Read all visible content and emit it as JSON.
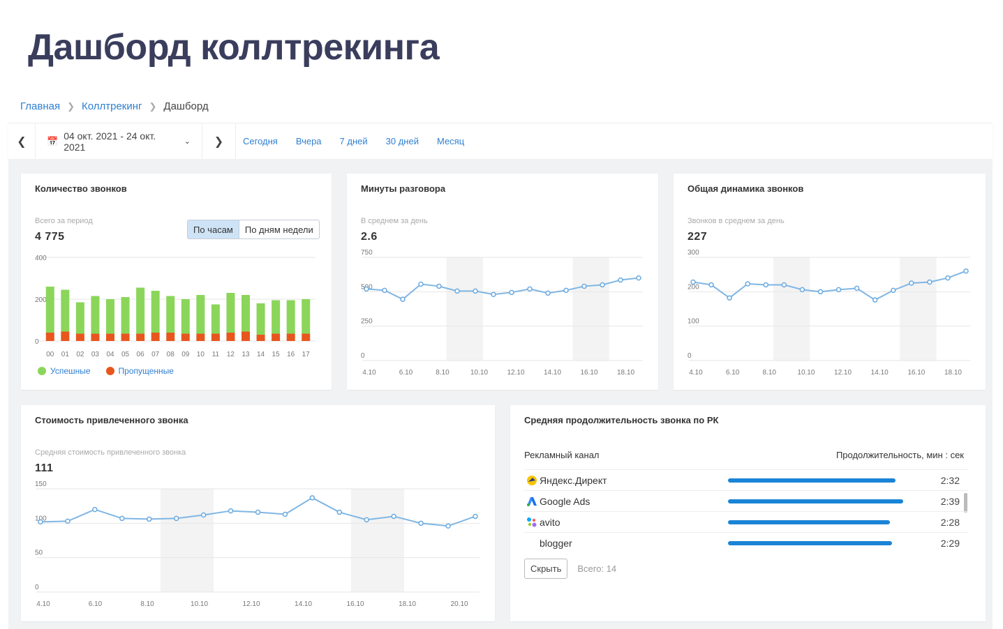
{
  "page_title": "Дашборд коллтрекинга",
  "breadcrumb": {
    "home": "Главная",
    "section": "Коллтрекинг",
    "current": "Дашборд"
  },
  "toolbar": {
    "date_range": "04 окт. 2021 - 24 окт. 2021",
    "quick": [
      "Сегодня",
      "Вчера",
      "7 дней",
      "30 дней",
      "Месяц"
    ]
  },
  "calls_count": {
    "title": "Количество звонков",
    "subtitle": "Всего за период",
    "value": "4 775",
    "toggle": [
      "По часам",
      "По дням недели"
    ],
    "legend_success": "Успешные",
    "legend_missed": "Пропущенные",
    "colors": {
      "success": "#8bd65a",
      "missed": "#e8561e"
    },
    "chart_data": {
      "type": "bar",
      "categories": [
        "00",
        "01",
        "02",
        "03",
        "04",
        "05",
        "06",
        "07",
        "08",
        "09",
        "10",
        "11",
        "12",
        "13",
        "14",
        "15",
        "16",
        "17"
      ],
      "series": [
        {
          "name": "Пропущенные",
          "values": [
            40,
            45,
            35,
            35,
            35,
            35,
            35,
            40,
            40,
            35,
            35,
            35,
            40,
            45,
            30,
            35,
            35,
            35
          ]
        },
        {
          "name": "Успешные",
          "values": [
            220,
            200,
            150,
            180,
            165,
            175,
            220,
            200,
            175,
            165,
            185,
            140,
            190,
            175,
            150,
            160,
            160,
            165
          ]
        }
      ],
      "y_ticks": [
        0,
        200,
        400
      ],
      "ylim": [
        0,
        400
      ]
    }
  },
  "minutes": {
    "title": "Минуты разговора",
    "subtitle": "В среднем за день",
    "value": "2.6",
    "chart_data": {
      "type": "line",
      "x_labels": [
        "4.10",
        "6.10",
        "8.10",
        "10.10",
        "12.10",
        "14.10",
        "16.10",
        "18.10"
      ],
      "values": [
        520,
        510,
        445,
        555,
        540,
        505,
        505,
        480,
        495,
        520,
        490,
        510,
        540,
        550,
        585,
        600
      ],
      "y_ticks": [
        0,
        250,
        500,
        750
      ],
      "ylim": [
        0,
        750
      ]
    }
  },
  "dynamics": {
    "title": "Общая динамика звонков",
    "subtitle": "Звонков в среднем за день",
    "value": "227",
    "chart_data": {
      "type": "line",
      "x_labels": [
        "4.10",
        "6.10",
        "8.10",
        "10.10",
        "12.10",
        "14.10",
        "16.10",
        "18.10"
      ],
      "values": [
        228,
        220,
        182,
        223,
        220,
        220,
        206,
        200,
        206,
        210,
        176,
        204,
        225,
        228,
        240,
        260
      ],
      "y_ticks": [
        0,
        100,
        200,
        300
      ],
      "ylim": [
        0,
        300
      ]
    }
  },
  "cost": {
    "title": "Стоимость привлеченного звонка",
    "subtitle": "Средняя стоимость привлеченного звонка",
    "value": "111",
    "chart_data": {
      "type": "line",
      "x_labels": [
        "4.10",
        "6.10",
        "8.10",
        "10.10",
        "12.10",
        "14.10",
        "16.10",
        "18.10",
        "20.10"
      ],
      "values": [
        102,
        103,
        120,
        107,
        106,
        107,
        112,
        118,
        116,
        113,
        137,
        116,
        105,
        110,
        100,
        96,
        110
      ],
      "y_ticks": [
        0,
        50,
        100,
        150
      ],
      "ylim": [
        0,
        150
      ]
    }
  },
  "duration": {
    "title": "Средняя продолжительность звонка по РК",
    "col_channel": "Рекламный канал",
    "col_duration": "Продолжительность, мин : сек",
    "rows": [
      {
        "name": "Яндекс.Директ",
        "value": "2:32",
        "icon": "yandex-direct-icon",
        "fraction": 0.89
      },
      {
        "name": "Google Ads",
        "value": "2:39",
        "icon": "google-ads-icon",
        "fraction": 0.93
      },
      {
        "name": "avito",
        "value": "2:28",
        "icon": "avito-icon",
        "fraction": 0.86
      },
      {
        "name": "blogger",
        "value": "2:29",
        "icon": "",
        "fraction": 0.87
      }
    ],
    "hide_label": "Скрыть",
    "total": "Всего: 14"
  }
}
